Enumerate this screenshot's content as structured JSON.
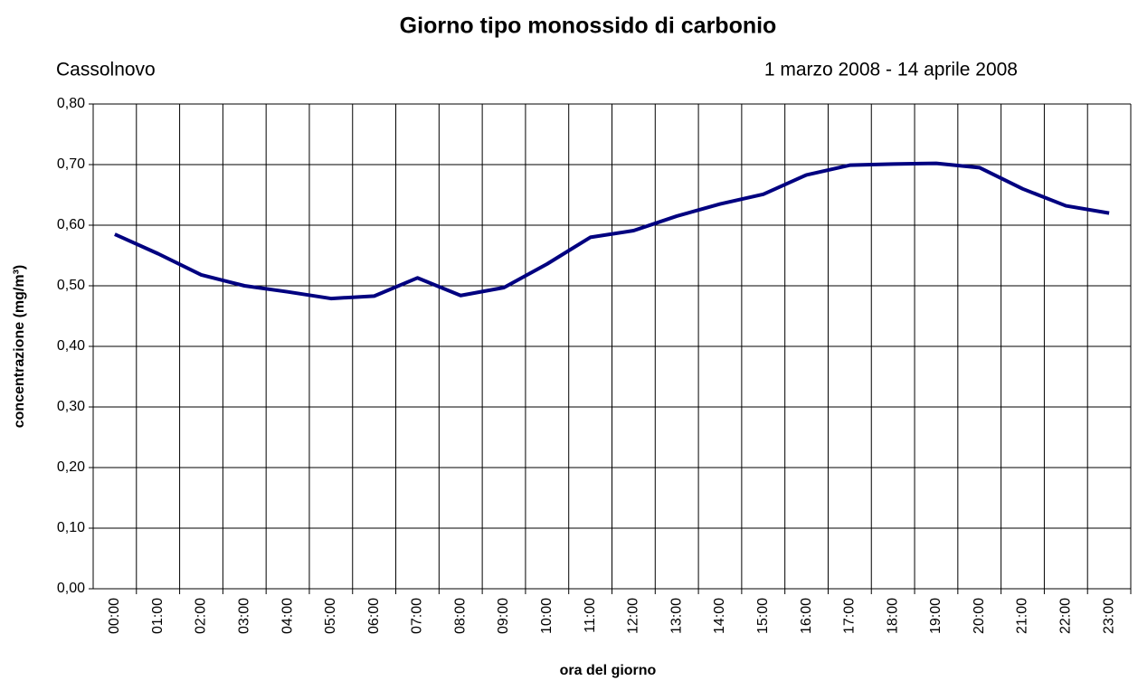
{
  "chart_data": {
    "type": "line",
    "title": "Giorno tipo monossido di carbonio",
    "subtitle": "Cassolnovo",
    "period": "1 marzo 2008 - 14 aprile 2008",
    "x_label": "ora del giorno",
    "y_label": "concentrazione (mg/m³)",
    "categories": [
      "00:00",
      "01:00",
      "02:00",
      "03:00",
      "04:00",
      "05:00",
      "06:00",
      "07:00",
      "08:00",
      "09:00",
      "10:00",
      "11:00",
      "12:00",
      "13:00",
      "14:00",
      "15:00",
      "16:00",
      "17:00",
      "18:00",
      "19:00",
      "20:00",
      "21:00",
      "22:00",
      "23:00"
    ],
    "series": [
      {
        "color": "#000080",
        "values": [
          0.585,
          0.553,
          0.518,
          0.5,
          0.49,
          0.479,
          0.483,
          0.513,
          0.484,
          0.497,
          0.536,
          0.58,
          0.591,
          0.615,
          0.635,
          0.651,
          0.683,
          0.699,
          0.701,
          0.702,
          0.695,
          0.66,
          0.632,
          0.62
        ]
      }
    ],
    "ylim": [
      0,
      0.8
    ],
    "yticks": [
      {
        "value": 0,
        "label": "0,00"
      },
      {
        "value": 0.1,
        "label": "0,10"
      },
      {
        "value": 0.2,
        "label": "0,20"
      },
      {
        "value": 0.3,
        "label": "0,30"
      },
      {
        "value": 0.4,
        "label": "0,40"
      },
      {
        "value": 0.5,
        "label": "0,50"
      },
      {
        "value": 0.6,
        "label": "0,60"
      },
      {
        "value": 0.7,
        "label": "0,70"
      },
      {
        "value": 0.8,
        "label": "0,80"
      }
    ],
    "grid": true
  }
}
